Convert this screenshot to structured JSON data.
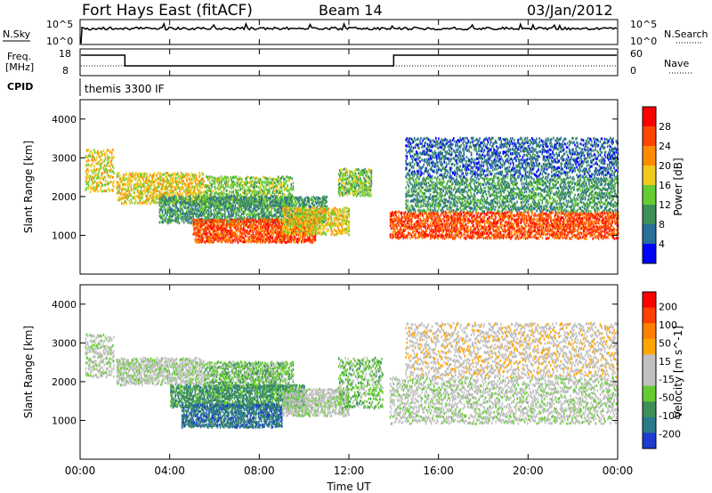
{
  "header": {
    "station": "Fort Hays East (fitACF)",
    "beam": "Beam 14",
    "date": "03/Jan/2012"
  },
  "top_panel": {
    "left_label": "N.Sky",
    "right_label": "N.Search",
    "left_ticks": [
      "10^5",
      "10^0"
    ],
    "right_ticks": [
      "10^5",
      "10^0"
    ]
  },
  "freq_panel": {
    "left_label_1": "Freq.",
    "left_label_2": "[MHz]",
    "right_label": "Nave",
    "left_ticks": [
      "18",
      "8"
    ],
    "right_ticks": [
      "60",
      "0"
    ],
    "freq_steps": [
      {
        "start_ut": 0.0,
        "end_ut": 2.0,
        "level": "high"
      },
      {
        "start_ut": 2.0,
        "end_ut": 14.0,
        "level": "low"
      },
      {
        "start_ut": 14.0,
        "end_ut": 24.0,
        "level": "high"
      }
    ]
  },
  "cpid": {
    "label": "CPID",
    "value": "themis 3300 IF"
  },
  "time_axis": {
    "label": "Time UT",
    "ticks": [
      "00:00",
      "04:00",
      "08:00",
      "12:00",
      "16:00",
      "20:00",
      "00:00"
    ]
  },
  "colors": {
    "power": [
      "#0000ff",
      "#2a6e9a",
      "#3f8f5a",
      "#66cc33",
      "#f0c81e",
      "#ff8c00",
      "#ff4500",
      "#ff0000"
    ],
    "velocity": [
      "#1e3ccf",
      "#2a7a8a",
      "#3f8f5a",
      "#66cc33",
      "#c0c0c0",
      "#c0c0c0",
      "#ffa500",
      "#ff7f00",
      "#ff4000",
      "#ff0000"
    ]
  },
  "chart_data": [
    {
      "type": "heatmap",
      "ylabel": "Slant Range [km]",
      "ylim": [
        0,
        4500
      ],
      "yticks": [
        1000,
        2000,
        3000,
        4000
      ],
      "xlim": [
        0,
        24
      ],
      "colorbar_label": "Power [dB]",
      "colorbar_ticks": [
        "4",
        "8",
        "12",
        "16",
        "20",
        "24",
        "28"
      ],
      "bands": [
        {
          "t0": 0.2,
          "t1": 1.5,
          "r0": 2100,
          "r1": 3200,
          "v": 4
        },
        {
          "t0": 1.6,
          "t1": 5.5,
          "r0": 1800,
          "r1": 2600,
          "v": 4
        },
        {
          "t0": 5.5,
          "t1": 9.5,
          "r0": 1700,
          "r1": 2500,
          "v": 3
        },
        {
          "t0": 3.5,
          "t1": 11.0,
          "r0": 1300,
          "r1": 2000,
          "v": 2
        },
        {
          "t0": 5.0,
          "t1": 10.5,
          "r0": 800,
          "r1": 1400,
          "v": 6
        },
        {
          "t0": 9.0,
          "t1": 12.0,
          "r0": 1000,
          "r1": 1700,
          "v": 4
        },
        {
          "t0": 11.5,
          "t1": 13.0,
          "r0": 2000,
          "r1": 2700,
          "v": 3
        },
        {
          "t0": 13.8,
          "t1": 24.0,
          "r0": 900,
          "r1": 1600,
          "v": 6
        },
        {
          "t0": 14.5,
          "t1": 24.0,
          "r0": 1600,
          "r1": 2500,
          "v": 2
        },
        {
          "t0": 14.5,
          "t1": 24.0,
          "r0": 2500,
          "r1": 3500,
          "v": 1
        }
      ]
    },
    {
      "type": "heatmap",
      "ylabel": "Slant Range [km]",
      "ylim": [
        0,
        4500
      ],
      "yticks": [
        1000,
        2000,
        3000,
        4000
      ],
      "xlim": [
        0,
        24
      ],
      "colorbar_label": "Velocity [m s^-1]",
      "colorbar_ticks": [
        "200",
        "100",
        "50",
        "15",
        "-15",
        "-50",
        "-100",
        "-200"
      ],
      "bands": [
        {
          "t0": 0.2,
          "t1": 1.5,
          "r0": 2100,
          "r1": 3200,
          "v": 4
        },
        {
          "t0": 1.6,
          "t1": 5.5,
          "r0": 1900,
          "r1": 2600,
          "v": 4
        },
        {
          "t0": 5.5,
          "t1": 9.5,
          "r0": 1800,
          "r1": 2500,
          "v": 3
        },
        {
          "t0": 4.0,
          "t1": 10.0,
          "r0": 1300,
          "r1": 1900,
          "v": 2
        },
        {
          "t0": 4.5,
          "t1": 9.0,
          "r0": 800,
          "r1": 1400,
          "v": 1
        },
        {
          "t0": 9.0,
          "t1": 12.0,
          "r0": 1100,
          "r1": 1800,
          "v": 4
        },
        {
          "t0": 11.5,
          "t1": 13.5,
          "r0": 1300,
          "r1": 2600,
          "v": 3
        },
        {
          "t0": 13.8,
          "t1": 24.0,
          "r0": 900,
          "r1": 2100,
          "v": 4
        },
        {
          "t0": 14.5,
          "t1": 24.0,
          "r0": 2100,
          "r1": 3500,
          "v": 5
        }
      ]
    }
  ]
}
